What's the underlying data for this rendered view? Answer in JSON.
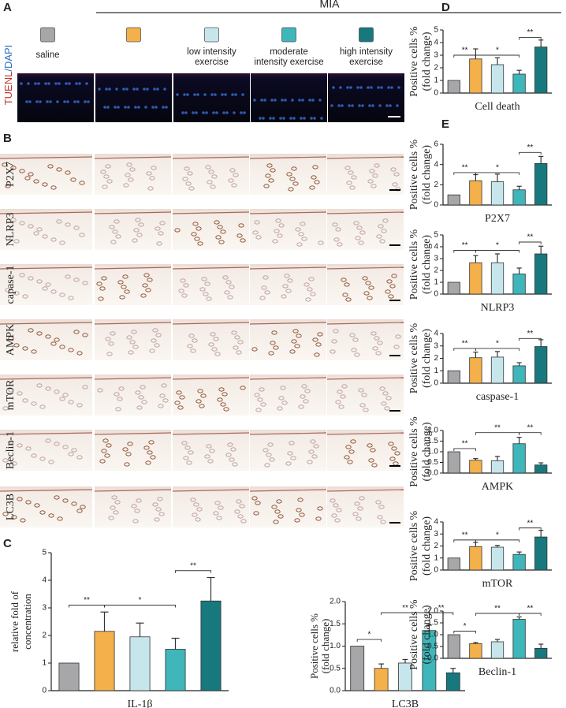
{
  "figure": {
    "panels": [
      "A",
      "B",
      "C",
      "D",
      "E"
    ],
    "mia_label": "MIA",
    "stain_label": [
      "TUENL",
      "/DAPI"
    ],
    "stain_colors": [
      "#c0392b",
      "#2e6fc0"
    ],
    "groups": [
      {
        "color": "#a7a7aa",
        "label": [
          "saline"
        ]
      },
      {
        "color": "#f4b04a"
      },
      {
        "color": "#c6e6ec",
        "label": [
          "low intensity",
          "exercise"
        ]
      },
      {
        "color": "#3eb6ba",
        "label": [
          "moderate",
          "intensity exercise"
        ]
      },
      {
        "color": "#17787e",
        "label": [
          "high intensity",
          "exercise"
        ]
      }
    ],
    "rows": [
      "P2X7",
      "NLRP3",
      "capase-1",
      "AMPK",
      "mTOR",
      "Beclin-1",
      "LC3B"
    ]
  },
  "chart_data": [
    {
      "type": "bar",
      "xlabel": "IL-1β",
      "ylabel": [
        "relative fold of",
        "concentration"
      ],
      "values": [
        1,
        2.15,
        1.95,
        1.5,
        3.25
      ],
      "errors": [
        0,
        0.7,
        0.5,
        0.4,
        0.85
      ],
      "colors": [
        "#a7a7aa",
        "#f4b04a",
        "#c6e6ec",
        "#3eb6ba",
        "#17787e"
      ],
      "ylim": [
        0,
        5
      ],
      "yticks": [
        0,
        1,
        2,
        3,
        4,
        5
      ],
      "significance": [
        {
          "label": "**",
          "bars": [
            0,
            1
          ],
          "y": 3.1
        },
        {
          "label": "*",
          "bars": [
            1,
            3
          ],
          "y": 3.1
        },
        {
          "label": "**",
          "bars": [
            3,
            4
          ],
          "y": 4.35
        }
      ]
    },
    {
      "type": "bar",
      "xlabel": "LC3B",
      "ylabel": [
        "Positive cells %",
        "(fold change)"
      ],
      "values": [
        1,
        0.5,
        0.62,
        1.35,
        0.4
      ],
      "errors": [
        0,
        0.1,
        0.08,
        0.12,
        0.1
      ],
      "colors": [
        "#a7a7aa",
        "#f4b04a",
        "#c6e6ec",
        "#3eb6ba",
        "#17787e"
      ],
      "ylim": [
        0,
        2
      ],
      "yticks": [
        {
          "value": 0,
          "label": "0.0"
        },
        {
          "value": 0.5,
          "label": "0.5"
        },
        {
          "value": 1,
          "label": "1.0"
        },
        {
          "value": 1.5,
          "label": "1.5"
        },
        {
          "value": 2,
          "label": "2.0"
        }
      ],
      "significance": [
        {
          "label": "*",
          "bars": [
            0,
            1
          ],
          "y": 1.15
        },
        {
          "label": "**",
          "bars": [
            1,
            3
          ],
          "y": 1.75
        },
        {
          "label": "**",
          "bars": [
            3,
            4
          ],
          "y": 1.75
        }
      ]
    },
    {
      "type": "bar",
      "xlabel": "Cell death",
      "ylabel": [
        "Positive cells %",
        "(fold change)"
      ],
      "values": [
        1,
        2.7,
        2.25,
        1.5,
        3.65
      ],
      "errors": [
        0,
        0.8,
        0.55,
        0.3,
        0.55
      ],
      "colors": [
        "#a7a7aa",
        "#f4b04a",
        "#c6e6ec",
        "#3eb6ba",
        "#17787e"
      ],
      "ylim": [
        0,
        5
      ],
      "yticks": [
        0,
        1,
        2,
        3,
        4,
        5
      ],
      "significance": [
        {
          "label": "**",
          "bars": [
            0,
            1
          ],
          "y": 3.0
        },
        {
          "label": "*",
          "bars": [
            1,
            3
          ],
          "y": 3.0
        },
        {
          "label": "**",
          "bars": [
            3,
            4
          ],
          "y": 4.4
        }
      ]
    },
    {
      "type": "bar",
      "xlabel": "P2X7",
      "ylabel": [
        "Positive cells %",
        "(fold change)"
      ],
      "values": [
        1,
        2.4,
        2.3,
        1.5,
        4.1
      ],
      "errors": [
        0,
        0.6,
        0.75,
        0.35,
        0.7
      ],
      "colors": [
        "#a7a7aa",
        "#f4b04a",
        "#c6e6ec",
        "#3eb6ba",
        "#17787e"
      ],
      "ylim": [
        0,
        6
      ],
      "yticks": [
        0,
        2,
        4,
        6
      ],
      "significance": [
        {
          "label": "**",
          "bars": [
            0,
            1
          ],
          "y": 3.2
        },
        {
          "label": "*",
          "bars": [
            1,
            3
          ],
          "y": 3.2
        },
        {
          "label": "**",
          "bars": [
            3,
            4
          ],
          "y": 5.2
        }
      ]
    },
    {
      "type": "bar",
      "xlabel": "NLRP3",
      "ylabel": [
        "Positive cells %",
        "(fold change)"
      ],
      "values": [
        1,
        2.65,
        2.65,
        1.7,
        3.4
      ],
      "errors": [
        0,
        0.6,
        0.75,
        0.5,
        0.65
      ],
      "colors": [
        "#a7a7aa",
        "#f4b04a",
        "#c6e6ec",
        "#3eb6ba",
        "#17787e"
      ],
      "ylim": [
        0,
        5
      ],
      "yticks": [
        0,
        1,
        2,
        3,
        4,
        5
      ],
      "significance": [
        {
          "label": "**",
          "bars": [
            0,
            1
          ],
          "y": 3.7
        },
        {
          "label": "*",
          "bars": [
            1,
            3
          ],
          "y": 3.7
        },
        {
          "label": "**",
          "bars": [
            3,
            4
          ],
          "y": 4.4
        }
      ]
    },
    {
      "type": "bar",
      "xlabel": "caspase-1",
      "ylabel": [
        "Positive cells %",
        "(fold change)"
      ],
      "values": [
        1,
        2.05,
        2.1,
        1.4,
        2.95
      ],
      "errors": [
        0,
        0.45,
        0.45,
        0.25,
        0.55
      ],
      "colors": [
        "#a7a7aa",
        "#f4b04a",
        "#c6e6ec",
        "#3eb6ba",
        "#17787e"
      ],
      "ylim": [
        0,
        4
      ],
      "yticks": [
        0,
        1,
        2,
        3,
        4
      ],
      "significance": [
        {
          "label": "**",
          "bars": [
            0,
            1
          ],
          "y": 2.8
        },
        {
          "label": "*",
          "bars": [
            1,
            3
          ],
          "y": 2.8
        },
        {
          "label": "**",
          "bars": [
            3,
            4
          ],
          "y": 3.6
        }
      ]
    },
    {
      "type": "bar",
      "xlabel": "AMPK",
      "ylabel": [
        "Positive cells %",
        "(fold change)"
      ],
      "values": [
        1,
        0.6,
        0.58,
        1.38,
        0.38
      ],
      "errors": [
        0,
        0.08,
        0.2,
        0.3,
        0.1
      ],
      "colors": [
        "#a7a7aa",
        "#f4b04a",
        "#c6e6ec",
        "#3eb6ba",
        "#17787e"
      ],
      "ylim": [
        0,
        2
      ],
      "yticks": [
        {
          "value": 0,
          "label": "0.0"
        },
        {
          "value": 0.5,
          "label": "0.5"
        },
        {
          "value": 1,
          "label": "1.0"
        },
        {
          "value": 1.5,
          "label": "1.5"
        },
        {
          "value": 2,
          "label": "2.0"
        }
      ],
      "significance": [
        {
          "label": "**",
          "bars": [
            0,
            1
          ],
          "y": 1.15
        },
        {
          "label": "**",
          "bars": [
            1,
            3
          ],
          "y": 1.9
        },
        {
          "label": "**",
          "bars": [
            3,
            4
          ],
          "y": 1.9
        }
      ]
    },
    {
      "type": "bar",
      "xlabel": "mTOR",
      "ylabel": [
        "Positive cells %",
        "(fold change)"
      ],
      "values": [
        1,
        1.95,
        1.9,
        1.3,
        2.75
      ],
      "errors": [
        0,
        0.35,
        0.15,
        0.2,
        0.55
      ],
      "colors": [
        "#a7a7aa",
        "#f4b04a",
        "#c6e6ec",
        "#3eb6ba",
        "#17787e"
      ],
      "ylim": [
        0,
        4
      ],
      "yticks": [
        0,
        1,
        2,
        3,
        4
      ],
      "significance": [
        {
          "label": "**",
          "bars": [
            0,
            1
          ],
          "y": 2.5
        },
        {
          "label": "*",
          "bars": [
            1,
            3
          ],
          "y": 2.5
        },
        {
          "label": "**",
          "bars": [
            3,
            4
          ],
          "y": 3.5
        }
      ]
    },
    {
      "type": "bar",
      "xlabel": "Beclin-1",
      "ylabel": [
        "Positive cells %",
        "(fold change)"
      ],
      "values": [
        1,
        0.62,
        0.7,
        1.65,
        0.42
      ],
      "errors": [
        0,
        0.05,
        0.1,
        0.1,
        0.18
      ],
      "colors": [
        "#a7a7aa",
        "#f4b04a",
        "#c6e6ec",
        "#3eb6ba",
        "#17787e"
      ],
      "ylim": [
        0,
        2
      ],
      "yticks": [
        {
          "value": 0,
          "label": "0.0"
        },
        {
          "value": 0.5,
          "label": "0.5"
        },
        {
          "value": 1,
          "label": "1.0"
        },
        {
          "value": 1.5,
          "label": "1.5"
        },
        {
          "value": 2,
          "label": "2.0"
        }
      ],
      "significance": [
        {
          "label": "*",
          "bars": [
            0,
            1
          ],
          "y": 1.15
        },
        {
          "label": "**",
          "bars": [
            1,
            3
          ],
          "y": 1.9
        },
        {
          "label": "**",
          "bars": [
            3,
            4
          ],
          "y": 1.9
        }
      ]
    }
  ]
}
